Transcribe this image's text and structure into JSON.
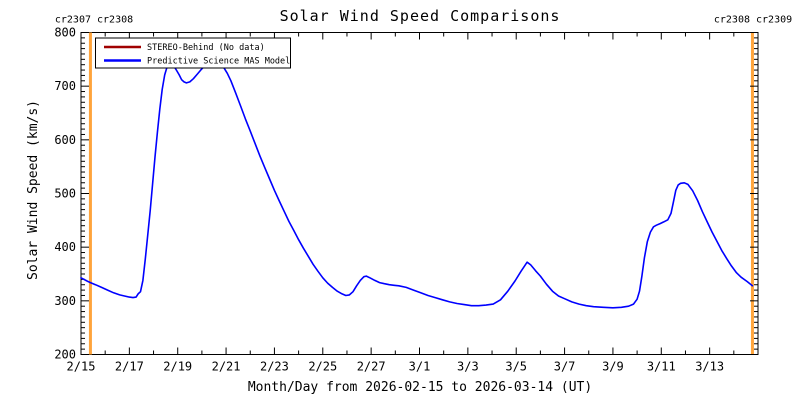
{
  "header": {
    "title": "Solar Wind Speed Comparisons",
    "carrington_left": "cr2307 cr2308",
    "carrington_right": "cr2308 cr2309"
  },
  "axes": {
    "xlabel": "Month/Day from 2026-02-15 to 2026-03-14 (UT)",
    "ylabel": "Solar Wind Speed (km/s)"
  },
  "legend": {
    "items": [
      {
        "label": "STEREO-Behind (No data)",
        "color": "#a00000"
      },
      {
        "label": "Predictive Science MAS Model",
        "color": "#0000ff"
      }
    ]
  },
  "colors": {
    "frame": "#000000",
    "boundary_orange": "#ffa43b",
    "model_blue": "#0000ff",
    "stereo_red": "#a00000",
    "background": "#ffffff"
  },
  "chart_data": {
    "type": "line",
    "title": "Solar Wind Speed Comparisons",
    "xlabel": "Month/Day from 2026-02-15 to 2026-03-14 (UT)",
    "ylabel": "Solar Wind Speed (km/s)",
    "x_unit": "days since 2026-02-15 00:00 UT",
    "xlim": [
      0,
      28
    ],
    "ylim": [
      200,
      800
    ],
    "grid": false,
    "legend_position": "top-left-inside",
    "x_major_ticks": [
      {
        "day": 0,
        "label": "2/15"
      },
      {
        "day": 2,
        "label": "2/17"
      },
      {
        "day": 4,
        "label": "2/19"
      },
      {
        "day": 6,
        "label": "2/21"
      },
      {
        "day": 8,
        "label": "2/23"
      },
      {
        "day": 10,
        "label": "2/25"
      },
      {
        "day": 12,
        "label": "2/27"
      },
      {
        "day": 14,
        "label": "3/1"
      },
      {
        "day": 16,
        "label": "3/3"
      },
      {
        "day": 18,
        "label": "3/5"
      },
      {
        "day": 20,
        "label": "3/7"
      },
      {
        "day": 22,
        "label": "3/9"
      },
      {
        "day": 24,
        "label": "3/11"
      },
      {
        "day": 26,
        "label": "3/13"
      }
    ],
    "x_minor_step": 1,
    "y_major_step": 100,
    "y_minor_step": 10,
    "carrington_boundaries": [
      {
        "day": 0.39,
        "rotation_left": "cr2307",
        "rotation_right": "cr2308",
        "color": "#ffa43b"
      },
      {
        "day": 27.77,
        "rotation_left": "cr2308",
        "rotation_right": "cr2309",
        "color": "#ffa43b"
      }
    ],
    "series": [
      {
        "name": "STEREO-Behind (No data)",
        "color": "#a00000",
        "points": []
      },
      {
        "name": "Predictive Science MAS Model",
        "color": "#0000ff",
        "points": [
          [
            0.0,
            343
          ],
          [
            0.25,
            337
          ],
          [
            0.39,
            334
          ],
          [
            0.6,
            330
          ],
          [
            0.85,
            325
          ],
          [
            1.1,
            320
          ],
          [
            1.35,
            315
          ],
          [
            1.6,
            311
          ],
          [
            1.8,
            309
          ],
          [
            2.0,
            307
          ],
          [
            2.15,
            306
          ],
          [
            2.28,
            307
          ],
          [
            2.36,
            313
          ],
          [
            2.46,
            317
          ],
          [
            2.56,
            338
          ],
          [
            2.66,
            378
          ],
          [
            2.76,
            422
          ],
          [
            2.86,
            468
          ],
          [
            2.96,
            518
          ],
          [
            3.06,
            568
          ],
          [
            3.16,
            614
          ],
          [
            3.26,
            657
          ],
          [
            3.36,
            694
          ],
          [
            3.46,
            721
          ],
          [
            3.56,
            736
          ],
          [
            3.66,
            742
          ],
          [
            3.76,
            741
          ],
          [
            3.86,
            736
          ],
          [
            3.96,
            729
          ],
          [
            4.06,
            721
          ],
          [
            4.16,
            712
          ],
          [
            4.26,
            708
          ],
          [
            4.36,
            706
          ],
          [
            4.5,
            708
          ],
          [
            4.65,
            714
          ],
          [
            4.8,
            722
          ],
          [
            4.95,
            730
          ],
          [
            5.1,
            737
          ],
          [
            5.2,
            740
          ],
          [
            5.35,
            742
          ],
          [
            5.55,
            742
          ],
          [
            5.75,
            741
          ],
          [
            5.9,
            735
          ],
          [
            6.05,
            724
          ],
          [
            6.2,
            710
          ],
          [
            6.4,
            687
          ],
          [
            6.6,
            663
          ],
          [
            6.8,
            639
          ],
          [
            7.0,
            616
          ],
          [
            7.2,
            593
          ],
          [
            7.4,
            570
          ],
          [
            7.6,
            548
          ],
          [
            7.8,
            527
          ],
          [
            8.0,
            506
          ],
          [
            8.2,
            486
          ],
          [
            8.4,
            467
          ],
          [
            8.6,
            448
          ],
          [
            8.8,
            431
          ],
          [
            9.0,
            414
          ],
          [
            9.2,
            398
          ],
          [
            9.4,
            383
          ],
          [
            9.6,
            368
          ],
          [
            9.8,
            355
          ],
          [
            10.0,
            343
          ],
          [
            10.2,
            333
          ],
          [
            10.4,
            325
          ],
          [
            10.6,
            318
          ],
          [
            10.8,
            313
          ],
          [
            10.95,
            310
          ],
          [
            11.1,
            311
          ],
          [
            11.25,
            317
          ],
          [
            11.4,
            328
          ],
          [
            11.55,
            338
          ],
          [
            11.7,
            345
          ],
          [
            11.8,
            346
          ],
          [
            11.95,
            343
          ],
          [
            12.15,
            338
          ],
          [
            12.35,
            334
          ],
          [
            12.55,
            332
          ],
          [
            12.75,
            330
          ],
          [
            12.95,
            329
          ],
          [
            13.15,
            328
          ],
          [
            13.45,
            325
          ],
          [
            13.75,
            320
          ],
          [
            14.05,
            315
          ],
          [
            14.35,
            310
          ],
          [
            14.65,
            306
          ],
          [
            14.95,
            302
          ],
          [
            15.25,
            298
          ],
          [
            15.55,
            295
          ],
          [
            15.85,
            293
          ],
          [
            16.15,
            291
          ],
          [
            16.45,
            291
          ],
          [
            16.75,
            292
          ],
          [
            17.05,
            294
          ],
          [
            17.35,
            302
          ],
          [
            17.65,
            318
          ],
          [
            17.95,
            337
          ],
          [
            18.2,
            355
          ],
          [
            18.45,
            372
          ],
          [
            18.6,
            367
          ],
          [
            18.8,
            356
          ],
          [
            19.0,
            346
          ],
          [
            19.25,
            331
          ],
          [
            19.5,
            318
          ],
          [
            19.75,
            309
          ],
          [
            20.0,
            304
          ],
          [
            20.3,
            298
          ],
          [
            20.6,
            294
          ],
          [
            20.9,
            291
          ],
          [
            21.2,
            289
          ],
          [
            21.6,
            288
          ],
          [
            22.0,
            287
          ],
          [
            22.35,
            288
          ],
          [
            22.65,
            290
          ],
          [
            22.85,
            294
          ],
          [
            23.0,
            303
          ],
          [
            23.1,
            318
          ],
          [
            23.2,
            346
          ],
          [
            23.3,
            380
          ],
          [
            23.42,
            410
          ],
          [
            23.55,
            428
          ],
          [
            23.68,
            438
          ],
          [
            23.8,
            441
          ],
          [
            23.95,
            444
          ],
          [
            24.1,
            447
          ],
          [
            24.27,
            451
          ],
          [
            24.4,
            463
          ],
          [
            24.5,
            484
          ],
          [
            24.6,
            506
          ],
          [
            24.7,
            516
          ],
          [
            24.8,
            519
          ],
          [
            24.95,
            520
          ],
          [
            25.1,
            517
          ],
          [
            25.3,
            505
          ],
          [
            25.5,
            487
          ],
          [
            25.7,
            466
          ],
          [
            25.9,
            447
          ],
          [
            26.1,
            428
          ],
          [
            26.3,
            411
          ],
          [
            26.5,
            394
          ],
          [
            26.7,
            379
          ],
          [
            26.9,
            365
          ],
          [
            27.1,
            353
          ],
          [
            27.3,
            344
          ],
          [
            27.55,
            336
          ],
          [
            27.77,
            328
          ]
        ]
      }
    ]
  }
}
